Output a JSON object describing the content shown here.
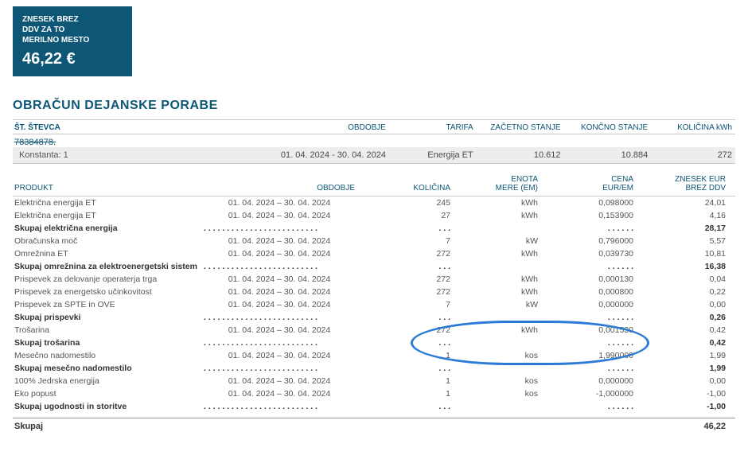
{
  "summary": {
    "label_l1": "ZNESEK BREZ",
    "label_l2": "DDV ZA TO",
    "label_l3": "MERILNO MESTO",
    "amount": "46,22 €"
  },
  "section_title": "OBRAČUN DEJANSKE PORABE",
  "meter": {
    "headers": {
      "stevca": "ŠT. ŠTEVCA",
      "obdobje": "OBDOBJE",
      "tarifa": "TARIFA",
      "zacetno": "ZAČETNO STANJE",
      "koncno": "KONČNO STANJE",
      "kolicina": "KOLIČINA kWh"
    },
    "stevca_no": "78384878.",
    "konstanta": "Konstanta: 1",
    "period": "01. 04. 2024 - 30. 04. 2024",
    "tarifa": "Energija ET",
    "zacetno": "10.612",
    "koncno": "10.884",
    "kolicina": "272"
  },
  "products": {
    "headers": {
      "produkt": "PRODUKT",
      "obdobje": "OBDOBJE",
      "kolicina": "KOLIČINA",
      "em1": "ENOTA",
      "em2": "MERE (EM)",
      "cena1": "CENA",
      "cena2": "EUR/EM",
      "zn1": "ZNESEK EUR",
      "zn2": "BREZ DDV"
    },
    "rows": [
      {
        "name": "Električna energija  ET",
        "per": "01. 04. 2024  –  30. 04. 2024",
        "qty": "245",
        "em": "kWh",
        "cena": "0,098000",
        "zn": "24,01",
        "bold": false
      },
      {
        "name": "Električna energija  ET",
        "per": "01. 04. 2024  –  30. 04. 2024",
        "qty": "27",
        "em": "kWh",
        "cena": "0,153900",
        "zn": "4,16",
        "bold": false
      },
      {
        "name": "Skupaj električna energija",
        "per": ". . . . . . . . . . . . . . . . . . . . . . . . .",
        "qty": ". . .",
        "em": "",
        "cena": ". . . . . .",
        "zn": "28,17",
        "bold": true
      },
      {
        "name": "Obračunska moč",
        "per": "01. 04. 2024  –  30. 04. 2024",
        "qty": "7",
        "em": "kW",
        "cena": "0,796000",
        "zn": "5,57",
        "bold": false
      },
      {
        "name": "Omrežnina  ET",
        "per": "01. 04. 2024  –  30. 04. 2024",
        "qty": "272",
        "em": "kWh",
        "cena": "0,039730",
        "zn": "10,81",
        "bold": false
      },
      {
        "name": "Skupaj omrežnina za elektroenergetski sistem",
        "per": ". . . . . . . . . . . . . . . . . . . . . . . . .",
        "qty": ". . .",
        "em": "",
        "cena": ". . . . . .",
        "zn": "16,38",
        "bold": true
      },
      {
        "name": "Prispevek za delovanje operaterja trga",
        "per": "01. 04. 2024  –  30. 04. 2024",
        "qty": "272",
        "em": "kWh",
        "cena": "0,000130",
        "zn": "0,04",
        "bold": false
      },
      {
        "name": "Prispevek za energetsko učinkovitost",
        "per": "01. 04. 2024  –  30. 04. 2024",
        "qty": "272",
        "em": "kWh",
        "cena": "0,000800",
        "zn": "0,22",
        "bold": false
      },
      {
        "name": "Prispevek za SPTE in OVE",
        "per": "01. 04. 2024  –  30. 04. 2024",
        "qty": "7",
        "em": "kW",
        "cena": "0,000000",
        "zn": "0,00",
        "bold": false
      },
      {
        "name": "Skupaj prispevki",
        "per": ". . . . . . . . . . . . . . . . . . . . . . . . .",
        "qty": ". . .",
        "em": "",
        "cena": ". . . . . .",
        "zn": "0,26",
        "bold": true
      },
      {
        "name": "Trošarina",
        "per": "01. 04. 2024  –  30. 04. 2024",
        "qty": "272",
        "em": "kWh",
        "cena": "0,001530",
        "zn": "0,42",
        "bold": false
      },
      {
        "name": "Skupaj trošarina",
        "per": ". . . . . . . . . . . . . . . . . . . . . . . . .",
        "qty": ". . .",
        "em": "",
        "cena": ". . . . . .",
        "zn": "0,42",
        "bold": true
      },
      {
        "name": "Mesečno nadomestilo",
        "per": "01. 04. 2024  –  30. 04. 2024",
        "qty": "1",
        "em": "kos",
        "cena": "1,990000",
        "zn": "1,99",
        "bold": false
      },
      {
        "name": "Skupaj mesečno nadomestilo",
        "per": ". . . . . . . . . . . . . . . . . . . . . . . . .",
        "qty": ". . .",
        "em": "",
        "cena": ". . . . . .",
        "zn": "1,99",
        "bold": true
      },
      {
        "name": "100% Jedrska energija",
        "per": "01. 04. 2024  –  30. 04. 2024",
        "qty": "1",
        "em": "kos",
        "cena": "0,000000",
        "zn": "0,00",
        "bold": false
      },
      {
        "name": "Eko popust",
        "per": "01. 04. 2024  –  30. 04. 2024",
        "qty": "1",
        "em": "kos",
        "cena": "-1,000000",
        "zn": "-1,00",
        "bold": false
      },
      {
        "name": "Skupaj ugodnosti in storitve",
        "per": ". . . . . . . . . . . . . . . . . . . . . . . . .",
        "qty": ". . .",
        "em": "",
        "cena": ". . . . . .",
        "zn": "-1,00",
        "bold": true
      }
    ],
    "total_label": "Skupaj",
    "total_value": "46,22"
  },
  "annotation": {
    "color": "#2b7bd6",
    "border_width": 3,
    "shape": "ellipse"
  }
}
